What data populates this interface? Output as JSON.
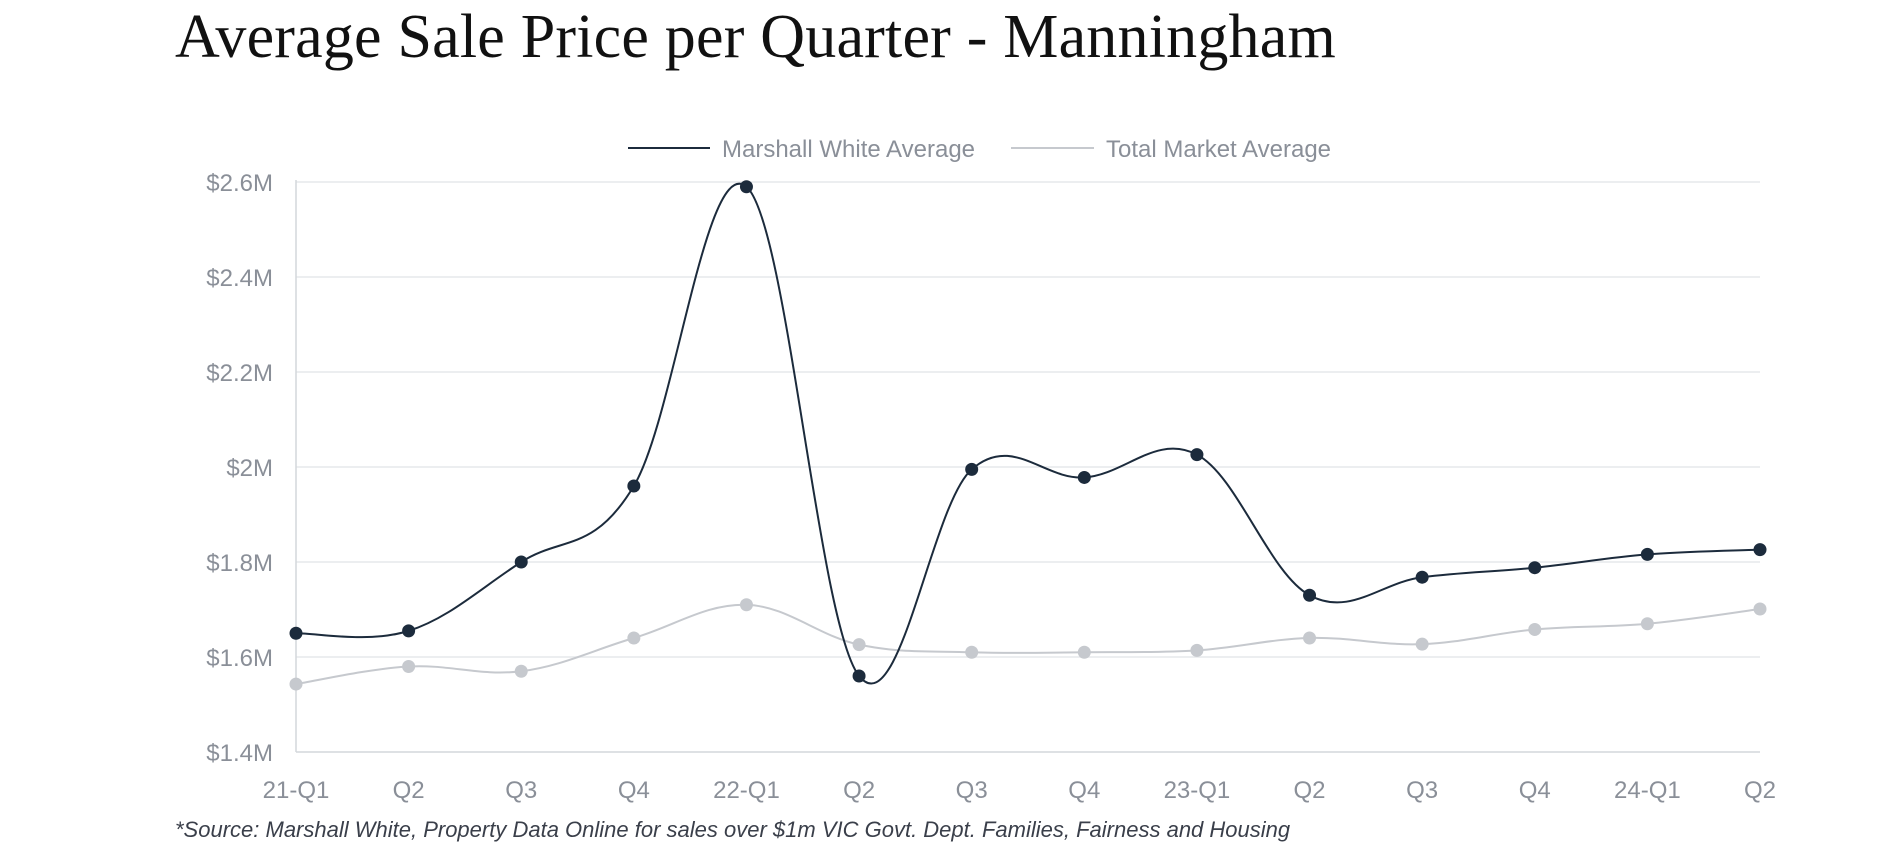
{
  "title": "Average Sale Price per Quarter - Manningham",
  "source_note": "*Source: Marshall White, Property Data Online for sales over $1m VIC Govt. Dept. Families, Fairness and Housing",
  "chart_data": {
    "type": "line",
    "title": "Average Sale Price per Quarter - Manningham",
    "categories": [
      "21-Q1",
      "Q2",
      "Q3",
      "Q4",
      "22-Q1",
      "Q2",
      "Q3",
      "Q4",
      "23-Q1",
      "Q2",
      "Q3",
      "Q4",
      "24-Q1",
      "Q2"
    ],
    "series": [
      {
        "name": "Marshall White Average",
        "color": "#1c2b3c",
        "values": [
          1.65,
          1.655,
          1.8,
          1.96,
          2.59,
          1.56,
          1.995,
          1.978,
          2.026,
          1.73,
          1.768,
          1.788,
          1.816,
          1.826
        ]
      },
      {
        "name": "Total Market Average",
        "color": "#c6c9ce",
        "values": [
          1.543,
          1.58,
          1.57,
          1.64,
          1.71,
          1.626,
          1.61,
          1.61,
          1.614,
          1.64,
          1.627,
          1.658,
          1.67,
          1.701
        ]
      }
    ],
    "ylim": [
      1.4,
      2.6
    ],
    "yticks": [
      1.4,
      1.6,
      1.8,
      2.0,
      2.2,
      2.4,
      2.6
    ],
    "ytick_labels": [
      "$1.4M",
      "$1.6M",
      "$1.8M",
      "$2M",
      "$2.2M",
      "$2.4M",
      "$2.6M"
    ],
    "unit": "$M",
    "grid": true,
    "legend_position": "top-center",
    "xlabel": "",
    "ylabel": ""
  }
}
